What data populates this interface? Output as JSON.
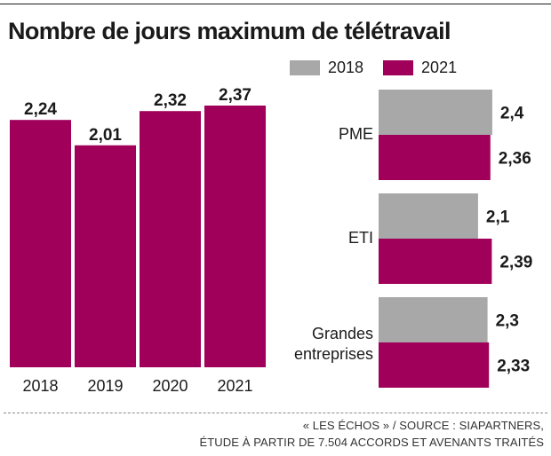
{
  "title": "Nombre de jours maximum de télétravail",
  "colors": {
    "magenta": "#a0005a",
    "grey": "#a8a8a8",
    "text": "#1a1a1a"
  },
  "legend": [
    {
      "label": "2018",
      "color": "#a8a8a8"
    },
    {
      "label": "2021",
      "color": "#a0005a"
    }
  ],
  "chart_data": [
    {
      "type": "bar",
      "orientation": "vertical",
      "title": "",
      "xlabel": "",
      "ylabel": "",
      "categories": [
        "2018",
        "2019",
        "2020",
        "2021"
      ],
      "values": [
        2.24,
        2.01,
        2.32,
        2.37
      ],
      "value_labels": [
        "2,24",
        "2,01",
        "2,32",
        "2,37"
      ],
      "color": "#a0005a",
      "ylim": [
        0,
        2.37
      ],
      "grid": false
    },
    {
      "type": "bar",
      "orientation": "horizontal",
      "title": "",
      "categories": [
        "PME",
        "ETI",
        "Grandes entreprises"
      ],
      "series": [
        {
          "name": "2018",
          "color": "#a8a8a8",
          "values": [
            2.4,
            2.1,
            2.3
          ],
          "value_labels": [
            "2,4",
            "2,1",
            "2,3"
          ]
        },
        {
          "name": "2021",
          "color": "#a0005a",
          "values": [
            2.36,
            2.39,
            2.33
          ],
          "value_labels": [
            "2,36",
            "2,39",
            "2,33"
          ]
        }
      ],
      "grid": false
    }
  ],
  "footer": {
    "source_line1": "« LES ÉCHOS » / SOURCE : SIAPARTNERS,",
    "source_line2": "ÉTUDE À PARTIR DE 7.504 ACCORDS ET AVENANTS TRAITÉS"
  }
}
